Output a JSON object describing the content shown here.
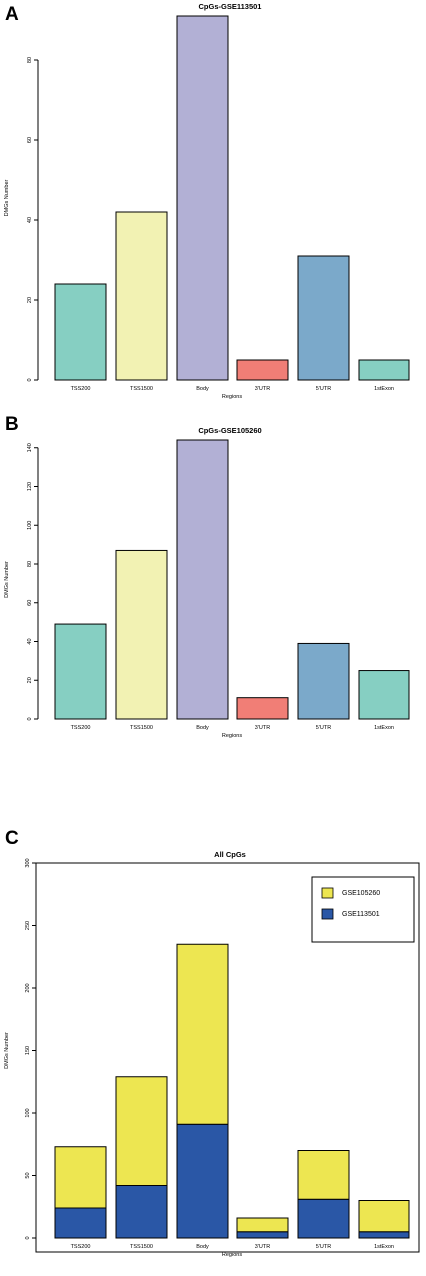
{
  "panels": [
    {
      "letter": "A",
      "chart_data": {
        "type": "bar",
        "title": "CpGs-GSE113501",
        "xlabel": "Regions",
        "ylabel": "DMGs Number",
        "categories": [
          "TSS200",
          "TSS1500",
          "Body",
          "3'UTR",
          "5'UTR",
          "1stExon"
        ],
        "values": [
          24,
          42,
          91,
          5,
          31,
          5
        ],
        "colors": [
          "#86CFC2",
          "#F2F2B3",
          "#B2B0D5",
          "#F17E76",
          "#7BA9CA",
          "#86CFC2"
        ],
        "ylim": [
          0,
          91
        ],
        "yticks": [
          0,
          20,
          40,
          60,
          80
        ],
        "grid": false
      }
    },
    {
      "letter": "B",
      "chart_data": {
        "type": "bar",
        "title": "CpGs-GSE105260",
        "xlabel": "Regions",
        "ylabel": "DMGs Number",
        "categories": [
          "TSS200",
          "TSS1500",
          "Body",
          "3'UTR",
          "5'UTR",
          "1stExon"
        ],
        "values": [
          49,
          87,
          144,
          11,
          39,
          25
        ],
        "colors": [
          "#86CFC2",
          "#F2F2B3",
          "#B2B0D5",
          "#F17E76",
          "#7BA9CA",
          "#86CFC2"
        ],
        "ylim": [
          0,
          144
        ],
        "yticks": [
          0,
          20,
          40,
          60,
          80,
          100,
          120,
          140
        ],
        "grid": false
      }
    },
    {
      "letter": "C",
      "chart_data": {
        "type": "bar",
        "stacked": true,
        "title": "All CpGs",
        "xlabel": "Regions",
        "ylabel": "DMGs Number",
        "categories": [
          "TSS200",
          "TSS1500",
          "Body",
          "3'UTR",
          "5'UTR",
          "1stExon"
        ],
        "series": [
          {
            "name": "GSE113501",
            "values": [
              24,
              42,
              91,
              5,
              31,
              5
            ],
            "color": "#2A57A6"
          },
          {
            "name": "GSE105260",
            "values": [
              49,
              87,
              144,
              11,
              39,
              25
            ],
            "color": "#EDE651"
          }
        ],
        "legend": [
          "GSE105260",
          "GSE113501"
        ],
        "legend_position": "top-right",
        "ylim": [
          0,
          300
        ],
        "yticks": [
          0,
          50,
          100,
          150,
          200,
          250,
          300
        ],
        "grid": false
      }
    }
  ]
}
